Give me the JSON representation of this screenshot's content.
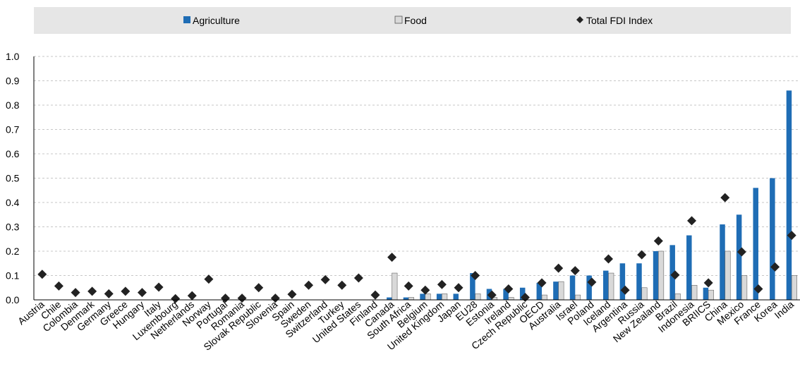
{
  "chart_data": {
    "type": "bar",
    "title": "",
    "xlabel": "",
    "ylabel": "",
    "ylim": [
      0,
      1.0
    ],
    "yticks": [
      "0.0",
      "0.1",
      "0.2",
      "0.3",
      "0.4",
      "0.5",
      "0.6",
      "0.7",
      "0.8",
      "0.9",
      "1.0"
    ],
    "grid": "horizontal dashed",
    "legend_position": "top",
    "colors": {
      "agriculture": "#1f6db5",
      "food": "#d9d9d9",
      "total": "#222222",
      "legend_bg": "#e6e6e6"
    },
    "categories": [
      "Austria",
      "Chile",
      "Colombia",
      "Denmark",
      "Germany",
      "Greece",
      "Hungary",
      "Italy",
      "Luxembourg",
      "Netherlands",
      "Norway",
      "Portugal",
      "Romania",
      "Slovak Republic",
      "Slovenia",
      "Spain",
      "Sweden",
      "Switzerland",
      "Turkey",
      "United States",
      "Finland",
      "Canada",
      "South Africa",
      "Belgium",
      "United Kingdom",
      "Japan",
      "EU28",
      "Estonia",
      "Ireland",
      "Czech Republic",
      "OECD",
      "Australia",
      "Israel",
      "Poland",
      "Iceland",
      "Argentina",
      "Russia",
      "New Zealand",
      "Brazil",
      "Indonesia",
      "BRIICS",
      "China",
      "Mexico",
      "France",
      "Korea",
      "India"
    ],
    "series": [
      {
        "name": "Agriculture",
        "type": "bar",
        "values": [
          0,
          0,
          0,
          0,
          0,
          0,
          0,
          0,
          0,
          0,
          0,
          0,
          0,
          0,
          0,
          0,
          0,
          0,
          0,
          0,
          0,
          0.01,
          0.01,
          0.025,
          0.025,
          0.025,
          0.11,
          0.045,
          0.045,
          0.05,
          0.07,
          0.075,
          0.1,
          0.1,
          0.12,
          0.15,
          0.15,
          0.2,
          0.225,
          0.265,
          0.05,
          0.31,
          0.35,
          0.46,
          0.5,
          0.86
        ]
      },
      {
        "name": "Food",
        "type": "bar",
        "values": [
          0,
          0,
          0,
          0,
          0,
          0,
          0,
          0,
          0,
          0,
          0,
          0,
          0,
          0,
          0,
          0,
          0,
          0,
          0,
          0,
          0,
          0.11,
          0.01,
          0.025,
          0.025,
          0,
          0.025,
          0.01,
          0.01,
          0,
          0.02,
          0.075,
          0.02,
          0,
          0.11,
          0,
          0.05,
          0.2,
          0.025,
          0.06,
          0.04,
          0.2,
          0.1,
          0,
          0,
          0.1
        ]
      },
      {
        "name": "Total FDI Index",
        "type": "marker",
        "values": [
          0.105,
          0.057,
          0.03,
          0.035,
          0.025,
          0.035,
          0.03,
          0.052,
          0.005,
          0.017,
          0.085,
          0.007,
          0.007,
          0.05,
          0.007,
          0.023,
          0.06,
          0.083,
          0.06,
          0.09,
          0.02,
          0.175,
          0.057,
          0.04,
          0.063,
          0.05,
          0.1,
          0.02,
          0.045,
          0.01,
          0.07,
          0.13,
          0.12,
          0.073,
          0.168,
          0.04,
          0.185,
          0.242,
          0.102,
          0.325,
          0.07,
          0.42,
          0.197,
          0.045,
          0.135,
          0.265
        ]
      }
    ]
  }
}
